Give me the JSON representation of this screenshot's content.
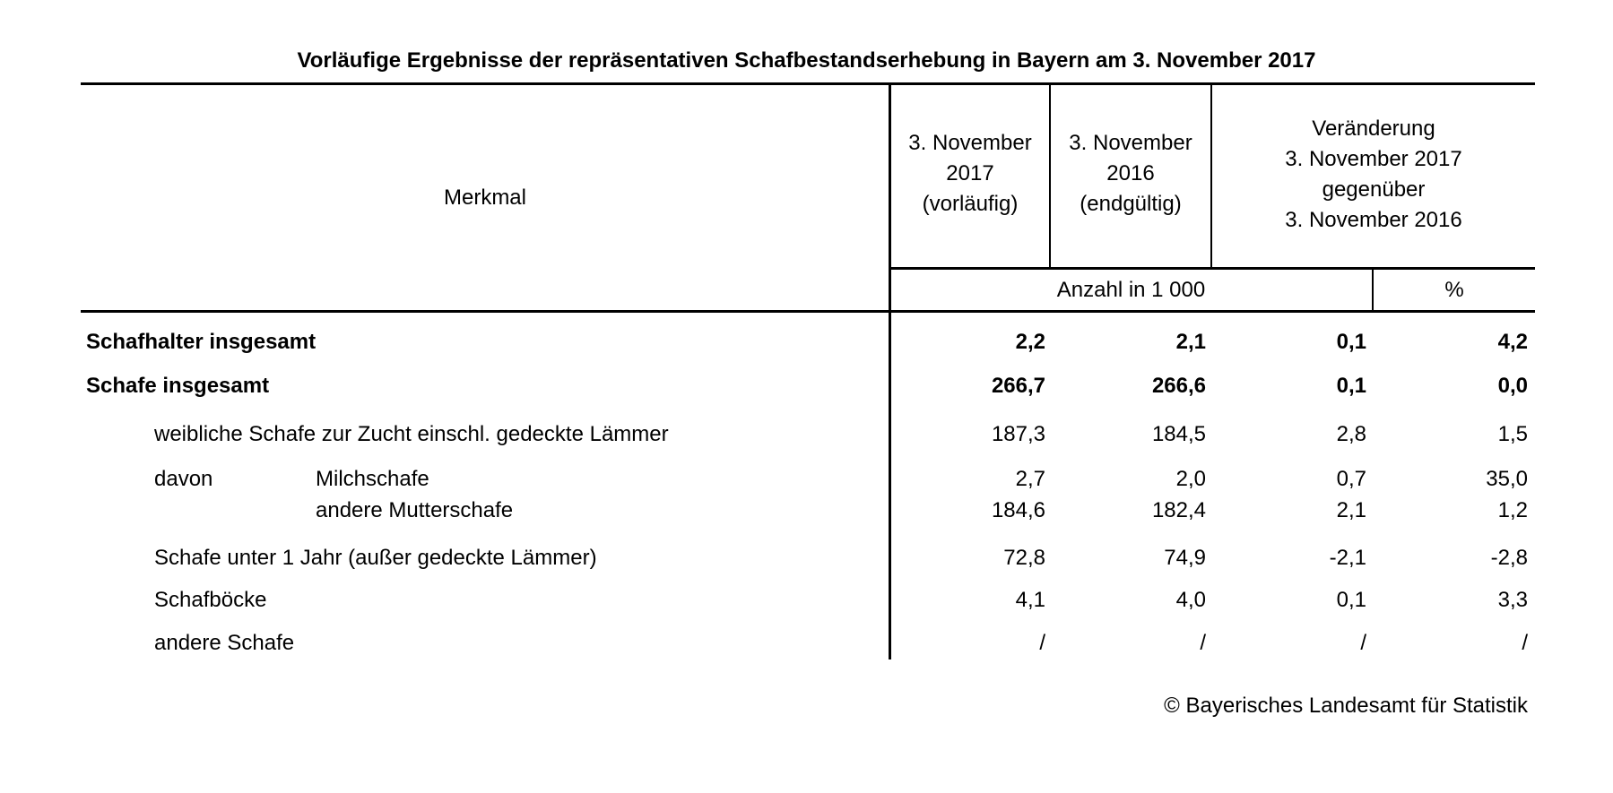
{
  "title": "Vorläufige Ergebnisse der repräsentativen Schafbestandserhebung in Bayern am 3. November 2017",
  "header": {
    "merkmal": "Merkmal",
    "col1": [
      "3. November",
      "2017",
      "(vorläufig)"
    ],
    "col2": [
      "3. November",
      "2016",
      "(endgültig)"
    ],
    "col3": [
      "Veränderung",
      "3. November 2017",
      "gegenüber",
      "3. November 2016"
    ],
    "unit_count": "Anzahl in 1 000",
    "unit_pct": "%"
  },
  "rows": [
    {
      "label": "Schafhalter insgesamt",
      "v2017": "2,2",
      "v2016": "2,1",
      "diff": "0,1",
      "pct": "4,2"
    },
    {
      "label": "Schafe insgesamt",
      "v2017": "266,7",
      "v2016": "266,6",
      "diff": "0,1",
      "pct": "0,0"
    },
    {
      "label": "weibliche Schafe zur Zucht einschl. gedeckte Lämmer",
      "v2017": "187,3",
      "v2016": "184,5",
      "diff": "2,8",
      "pct": "1,5"
    },
    {
      "prefix": "davon",
      "label": "Milchschafe",
      "v2017": "2,7",
      "v2016": "2,0",
      "diff": "0,7",
      "pct": "35,0"
    },
    {
      "label": "andere Mutterschafe",
      "v2017": "184,6",
      "v2016": "182,4",
      "diff": "2,1",
      "pct": "1,2"
    },
    {
      "label": "Schafe unter 1 Jahr (außer gedeckte Lämmer)",
      "v2017": "72,8",
      "v2016": "74,9",
      "diff": "-2,1",
      "pct": "-2,8"
    },
    {
      "label": "Schafböcke",
      "v2017": "4,1",
      "v2016": "4,0",
      "diff": "0,1",
      "pct": "3,3"
    },
    {
      "label": "andere Schafe",
      "v2017": "/",
      "v2016": "/",
      "diff": "/",
      "pct": "/"
    }
  ],
  "footer": "© Bayerisches Landesamt für Statistik"
}
